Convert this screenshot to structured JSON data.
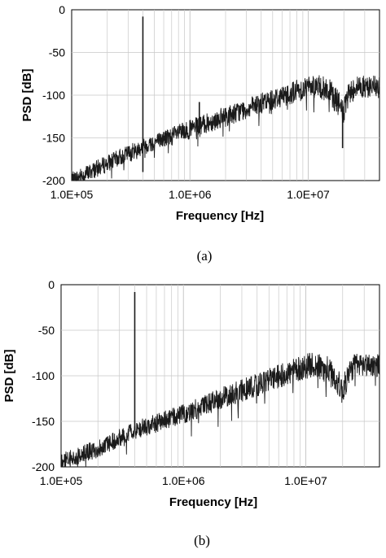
{
  "figure": {
    "caption_a": "(a)",
    "caption_b": "(b)"
  },
  "colors": {
    "trace": "#1a1a1a",
    "grid": "#c8c8c8",
    "axis": "#000000"
  },
  "chart_data": [
    {
      "type": "line",
      "panel": "a",
      "xscale": "log",
      "xlabel": "Frequency [Hz]",
      "ylabel": "PSD [dB]",
      "xlim": [
        100000,
        40000000
      ],
      "ylim": [
        -200,
        0
      ],
      "xticks": [
        "1.0E+05",
        "1.0E+06",
        "1.0E+07"
      ],
      "yticks": [
        "0",
        "-50",
        "-100",
        "-150",
        "-200"
      ],
      "grid": true,
      "series": [
        {
          "x": [
            100000,
            200000,
            400000,
            1000000,
            2000000,
            5000000,
            10000000,
            11000000,
            15000000,
            18000000,
            20000000,
            22000000,
            25000000,
            30000000,
            40000000
          ],
          "y": [
            -200,
            -180,
            -160,
            -140,
            -125,
            -105,
            -90,
            -88,
            -95,
            -110,
            -120,
            -100,
            -90,
            -90,
            -90
          ],
          "peak_to_peak_dB": [
            20,
            20,
            20,
            22,
            24,
            25,
            28,
            28,
            30,
            30,
            30,
            30,
            26,
            26,
            26
          ],
          "spikes": [
            {
              "x": 400000,
              "y": -8,
              "y_low": -190
            },
            {
              "x": 1200000,
              "y": -108
            },
            {
              "x": 19500000,
              "y": -162
            }
          ]
        }
      ]
    },
    {
      "type": "line",
      "panel": "b",
      "xscale": "log",
      "xlabel": "Frequency [Hz]",
      "ylabel": "PSD [dB]",
      "xlim": [
        100000,
        40000000
      ],
      "ylim": [
        -200,
        0
      ],
      "xticks": [
        "1.0E+05",
        "1.0E+06",
        "1.0E+07"
      ],
      "yticks": [
        "0",
        "-50",
        "-100",
        "-150",
        "-200"
      ],
      "grid": true,
      "series": [
        {
          "x": [
            100000,
            200000,
            400000,
            1000000,
            2000000,
            5000000,
            10000000,
            11000000,
            15000000,
            18000000,
            20000000,
            22000000,
            25000000,
            30000000,
            40000000
          ],
          "y": [
            -195,
            -180,
            -160,
            -142,
            -125,
            -105,
            -90,
            -88,
            -93,
            -105,
            -118,
            -100,
            -88,
            -88,
            -88
          ],
          "peak_to_peak_dB": [
            20,
            20,
            20,
            22,
            24,
            26,
            28,
            28,
            30,
            30,
            30,
            30,
            26,
            26,
            26
          ],
          "spikes": [
            {
              "x": 400000,
              "y": -8
            }
          ]
        }
      ]
    }
  ]
}
